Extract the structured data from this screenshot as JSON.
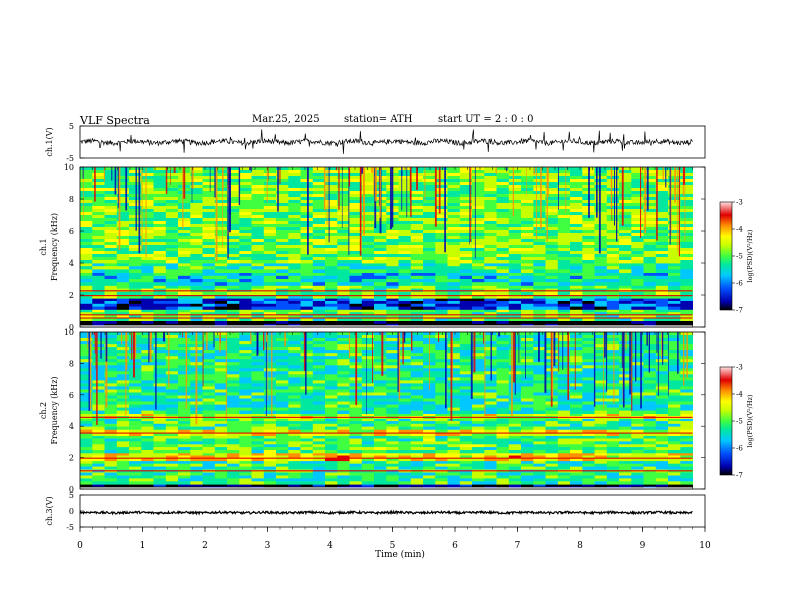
{
  "header": {
    "title": "VLF  Spectra",
    "date": "Mar.25, 2025",
    "station": "station= ATH",
    "start": "start  UT  =   2  : 0  : 0"
  },
  "chart_data": [
    {
      "type": "line",
      "panel": "ch1-waveform",
      "ylabel": "ch.1(V)",
      "ylim": [
        -5,
        5
      ],
      "yticklabels": [
        "5",
        "-5"
      ],
      "xlim": [
        0,
        10
      ],
      "baseline": 0.0,
      "noise_amplitude": 0.8,
      "spikes": "many short impulsive spikes reaching about +3 V and -3 V",
      "color": "#000000"
    },
    {
      "type": "heatmap",
      "panel": "ch1-spectrogram",
      "ylabel": "ch.1\nFrequency (kHz)",
      "ylim": [
        0,
        10
      ],
      "yticks": [
        0,
        2,
        4,
        6,
        8,
        10
      ],
      "xlim": [
        0,
        10
      ],
      "data_extent_min": 9.8,
      "colorbar": {
        "label": "log(PSD)(V²/Hz)",
        "range": [
          -7,
          -3
        ],
        "ticks": [
          -7,
          -6,
          -5,
          -4,
          -3
        ],
        "colors": [
          "#000000",
          "#0000b0",
          "#0050ff",
          "#00c8ff",
          "#00e8a0",
          "#40ff40",
          "#c8ff00",
          "#ffff00",
          "#ff9000",
          "#e00000",
          "#ffe0e0"
        ]
      },
      "bands": [
        {
          "f_low": 0.0,
          "f_high": 0.4,
          "level": -6.9,
          "desc": "dark band near 0 kHz with white gap"
        },
        {
          "f_low": 0.4,
          "f_high": 1.1,
          "level": -5.0,
          "desc": "green/cyan mixed"
        },
        {
          "f_low": 1.1,
          "f_high": 1.8,
          "level": -6.2,
          "desc": "blue band"
        },
        {
          "f_low": 1.8,
          "f_high": 2.6,
          "level": -5.0,
          "desc": "green with red lines near 2.0 kHz"
        },
        {
          "f_low": 2.6,
          "f_high": 3.4,
          "level": -5.5,
          "desc": "cyan/blue"
        },
        {
          "f_low": 3.4,
          "f_high": 4.0,
          "level": -5.2,
          "desc": "cyan"
        },
        {
          "f_low": 4.0,
          "f_high": 10.0,
          "level": -4.9,
          "desc": "green/cyan with vertical sferic streaks"
        }
      ]
    },
    {
      "type": "heatmap",
      "panel": "ch2-spectrogram",
      "ylabel": "ch.2\nFrequency (kHz)",
      "ylim": [
        0,
        10
      ],
      "yticks": [
        0,
        2,
        4,
        6,
        8,
        10
      ],
      "xlim": [
        0,
        10
      ],
      "data_extent_min": 9.8,
      "colorbar": {
        "label": "log(PSD)(V²/Hz)",
        "range": [
          -7,
          -3
        ],
        "ticks": [
          -7,
          -6,
          -5,
          -4,
          -3
        ],
        "colors": [
          "#000000",
          "#0000b0",
          "#0050ff",
          "#00c8ff",
          "#00e8a0",
          "#40ff40",
          "#c8ff00",
          "#ffff00",
          "#ff9000",
          "#e00000",
          "#ffe0e0"
        ]
      },
      "bands": [
        {
          "f_low": 0.0,
          "f_high": 0.3,
          "level": -6.8,
          "desc": "thin dark/white lines near 0 kHz"
        },
        {
          "f_low": 0.3,
          "f_high": 1.8,
          "level": -5.2,
          "desc": "cyan/green"
        },
        {
          "f_low": 1.8,
          "f_high": 2.3,
          "level": -4.3,
          "desc": "yellow/red line near 2.0 kHz"
        },
        {
          "f_low": 2.3,
          "f_high": 3.4,
          "level": -5.0,
          "desc": "green/cyan"
        },
        {
          "f_low": 3.4,
          "f_high": 3.8,
          "level": -4.4,
          "desc": "yellow/orange band near 3.6 kHz"
        },
        {
          "f_low": 3.8,
          "f_high": 4.5,
          "level": -5.1,
          "desc": "cyan/green"
        },
        {
          "f_low": 4.5,
          "f_high": 4.8,
          "level": -4.6,
          "desc": "red line near 4.6 kHz"
        },
        {
          "f_low": 4.8,
          "f_high": 10.0,
          "level": -5.3,
          "desc": "cyan/blue with vertical streaks"
        }
      ]
    },
    {
      "type": "line",
      "panel": "ch3-waveform",
      "ylabel": "ch.3(V)",
      "ylim": [
        -5,
        5
      ],
      "yticklabels": [
        "5",
        "0",
        "-5"
      ],
      "xlim": [
        0,
        10
      ],
      "baseline": -0.5,
      "noise_amplitude": 0.35,
      "color": "#000000"
    }
  ],
  "xaxis": {
    "label": "Time  (min)",
    "ticks": [
      "0",
      "1",
      "2",
      "3",
      "4",
      "5",
      "6",
      "7",
      "8",
      "9",
      "10"
    ],
    "range": [
      0,
      10
    ]
  }
}
